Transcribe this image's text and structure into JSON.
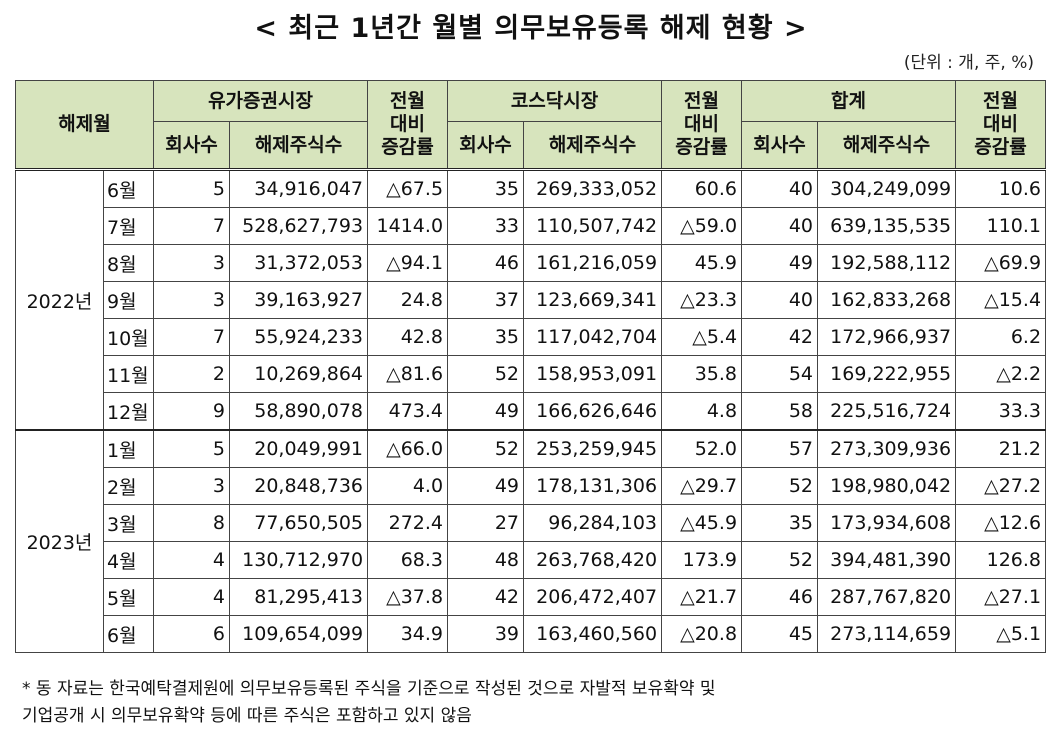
{
  "title": "< 최근 1년간 월별 의무보유등록 해제 현황 >",
  "unit": "(단위 : 개, 주, %)",
  "headers": {
    "period": "해제월",
    "kospi": "유가증권시장",
    "kosdaq": "코스닥시장",
    "total": "합계",
    "change_l1": "전월",
    "change_l2": "대비",
    "change_l3": "증감률",
    "companies": "회사수",
    "shares": "해제주식수"
  },
  "groups": [
    {
      "year": "2022년",
      "rows": [
        {
          "month": "6월",
          "k_cnt": "5",
          "k_shares": "34,916,047",
          "k_chg": "△67.5",
          "q_cnt": "35",
          "q_shares": "269,333,052",
          "q_chg": "60.6",
          "t_cnt": "40",
          "t_shares": "304,249,099",
          "t_chg": "10.6"
        },
        {
          "month": "7월",
          "k_cnt": "7",
          "k_shares": "528,627,793",
          "k_chg": "1414.0",
          "q_cnt": "33",
          "q_shares": "110,507,742",
          "q_chg": "△59.0",
          "t_cnt": "40",
          "t_shares": "639,135,535",
          "t_chg": "110.1"
        },
        {
          "month": "8월",
          "k_cnt": "3",
          "k_shares": "31,372,053",
          "k_chg": "△94.1",
          "q_cnt": "46",
          "q_shares": "161,216,059",
          "q_chg": "45.9",
          "t_cnt": "49",
          "t_shares": "192,588,112",
          "t_chg": "△69.9"
        },
        {
          "month": "9월",
          "k_cnt": "3",
          "k_shares": "39,163,927",
          "k_chg": "24.8",
          "q_cnt": "37",
          "q_shares": "123,669,341",
          "q_chg": "△23.3",
          "t_cnt": "40",
          "t_shares": "162,833,268",
          "t_chg": "△15.4"
        },
        {
          "month": "10월",
          "k_cnt": "7",
          "k_shares": "55,924,233",
          "k_chg": "42.8",
          "q_cnt": "35",
          "q_shares": "117,042,704",
          "q_chg": "△5.4",
          "t_cnt": "42",
          "t_shares": "172,966,937",
          "t_chg": "6.2"
        },
        {
          "month": "11월",
          "k_cnt": "2",
          "k_shares": "10,269,864",
          "k_chg": "△81.6",
          "q_cnt": "52",
          "q_shares": "158,953,091",
          "q_chg": "35.8",
          "t_cnt": "54",
          "t_shares": "169,222,955",
          "t_chg": "△2.2"
        },
        {
          "month": "12월",
          "k_cnt": "9",
          "k_shares": "58,890,078",
          "k_chg": "473.4",
          "q_cnt": "49",
          "q_shares": "166,626,646",
          "q_chg": "4.8",
          "t_cnt": "58",
          "t_shares": "225,516,724",
          "t_chg": "33.3"
        }
      ]
    },
    {
      "year": "2023년",
      "rows": [
        {
          "month": "1월",
          "k_cnt": "5",
          "k_shares": "20,049,991",
          "k_chg": "△66.0",
          "q_cnt": "52",
          "q_shares": "253,259,945",
          "q_chg": "52.0",
          "t_cnt": "57",
          "t_shares": "273,309,936",
          "t_chg": "21.2"
        },
        {
          "month": "2월",
          "k_cnt": "3",
          "k_shares": "20,848,736",
          "k_chg": "4.0",
          "q_cnt": "49",
          "q_shares": "178,131,306",
          "q_chg": "△29.7",
          "t_cnt": "52",
          "t_shares": "198,980,042",
          "t_chg": "△27.2"
        },
        {
          "month": "3월",
          "k_cnt": "8",
          "k_shares": "77,650,505",
          "k_chg": "272.4",
          "q_cnt": "27",
          "q_shares": "96,284,103",
          "q_chg": "△45.9",
          "t_cnt": "35",
          "t_shares": "173,934,608",
          "t_chg": "△12.6"
        },
        {
          "month": "4월",
          "k_cnt": "4",
          "k_shares": "130,712,970",
          "k_chg": "68.3",
          "q_cnt": "48",
          "q_shares": "263,768,420",
          "q_chg": "173.9",
          "t_cnt": "52",
          "t_shares": "394,481,390",
          "t_chg": "126.8"
        },
        {
          "month": "5월",
          "k_cnt": "4",
          "k_shares": "81,295,413",
          "k_chg": "△37.8",
          "q_cnt": "42",
          "q_shares": "206,472,407",
          "q_chg": "△21.7",
          "t_cnt": "46",
          "t_shares": "287,767,820",
          "t_chg": "△27.1"
        },
        {
          "month": "6월",
          "k_cnt": "6",
          "k_shares": "109,654,099",
          "k_chg": "34.9",
          "q_cnt": "39",
          "q_shares": "163,460,560",
          "q_chg": "△20.8",
          "t_cnt": "45",
          "t_shares": "273,114,659",
          "t_chg": "△5.1"
        }
      ]
    }
  ],
  "note_line1": "* 동 자료는 한국예탁결제원에 의무보유등록된 주식을 기준으로 작성된 것으로 자발적 보유확약 및",
  "note_line2": "기업공개 시 의무보유확약 등에 따른 주식은 포함하고 있지 않음"
}
